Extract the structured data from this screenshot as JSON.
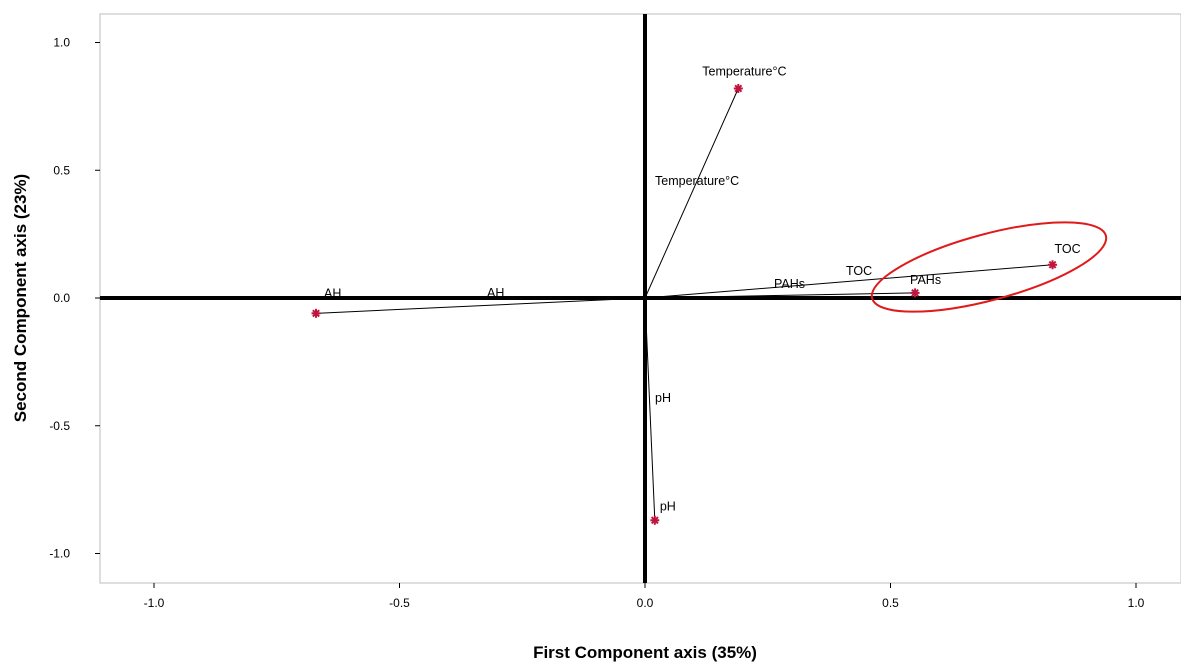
{
  "chart_data": {
    "type": "scatter",
    "xlabel": "First Component axis (35%)",
    "ylabel": "Second Component axis (23%)",
    "xlim": [
      -1.1,
      1.08
    ],
    "ylim": [
      -1.11,
      1.12
    ],
    "xticks": [
      -1.0,
      -0.5,
      0.0,
      0.5,
      1.0
    ],
    "xtick_labels": [
      "-1.0",
      "-0.5",
      "0.0",
      "0.5",
      "1.0"
    ],
    "yticks": [
      -1.0,
      -0.5,
      0.0,
      0.5,
      1.0
    ],
    "ytick_labels": [
      "-1.0",
      "-0.5",
      "0.0",
      "0.5",
      "1.0"
    ],
    "grid": false,
    "point_color": "#c0143c",
    "highlight_color": "#e01a1a",
    "points": [
      {
        "label": "Temperature°C",
        "x": 0.19,
        "y": 0.82
      },
      {
        "label": "TOC",
        "x": 0.83,
        "y": 0.13
      },
      {
        "label": "PAHs",
        "x": 0.55,
        "y": 0.02
      },
      {
        "label": "AH",
        "x": -0.67,
        "y": -0.06
      },
      {
        "label": "pH",
        "x": 0.02,
        "y": -0.87
      }
    ],
    "vector_labels": [
      {
        "label": "Temperature°C"
      },
      {
        "label": "TOC"
      },
      {
        "label": "PAHs"
      },
      {
        "label": "AH"
      },
      {
        "label": "pH"
      }
    ],
    "highlight": {
      "shape": "ellipse",
      "encloses": [
        "TOC",
        "PAHs"
      ]
    }
  }
}
